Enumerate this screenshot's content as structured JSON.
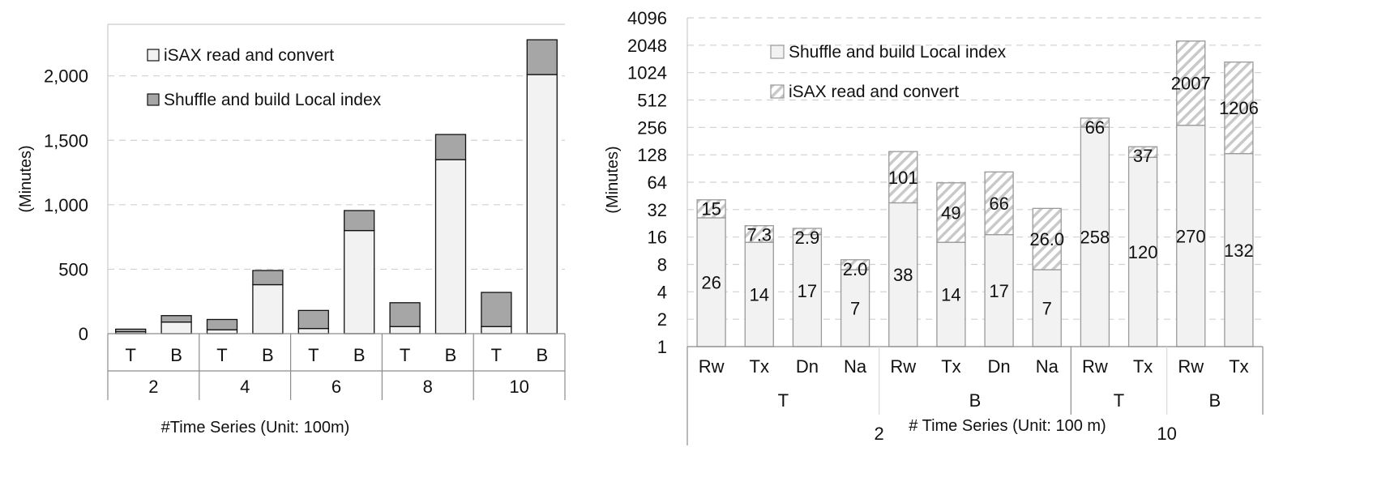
{
  "chart_data": [
    {
      "type": "bar",
      "stacked": true,
      "ylabel": "(Minutes)",
      "xlabel": "#Time Series (Unit: 100m)",
      "ylim": [
        0,
        2400
      ],
      "yticks": [
        0,
        500,
        1000,
        1500,
        2000
      ],
      "ytick_labels": [
        "0",
        "500",
        "1,000",
        "1,500",
        "2,000"
      ],
      "grid": true,
      "legend_position": "top-left",
      "groups": [
        "2",
        "4",
        "6",
        "8",
        "10"
      ],
      "categories": [
        "T",
        "B",
        "T",
        "B",
        "T",
        "B",
        "T",
        "B",
        "T",
        "B"
      ],
      "series": [
        {
          "name": "iSAX read and convert",
          "color": "#f2f2f2",
          "values": [
            15,
            90,
            30,
            380,
            40,
            800,
            55,
            1350,
            55,
            2010
          ]
        },
        {
          "name": "Shuffle and build Local index",
          "color": "#a6a6a6",
          "values": [
            20,
            50,
            80,
            110,
            140,
            155,
            185,
            195,
            265,
            270
          ]
        }
      ]
    },
    {
      "type": "bar",
      "stacked": true,
      "log_scale": true,
      "log_base": 2,
      "ylabel": "(Minutes)",
      "xlabel": "# Time Series (Unit: 100 m)",
      "ylim": [
        1,
        4096
      ],
      "yticks": [
        1,
        2,
        4,
        8,
        16,
        32,
        64,
        128,
        256,
        512,
        1024,
        2048,
        4096
      ],
      "ytick_labels": [
        "1",
        "2",
        "4",
        "8",
        "16",
        "32",
        "64",
        "128",
        "256",
        "512",
        "1024",
        "2048",
        "4096"
      ],
      "grid": true,
      "legend_position": "top-left",
      "categories": [
        "Rw",
        "Tx",
        "Dn",
        "Na",
        "Rw",
        "Tx",
        "Dn",
        "Na",
        "Rw",
        "Tx",
        "Rw",
        "Tx"
      ],
      "subgroups": [
        {
          "label": "T",
          "start": 0,
          "count": 4
        },
        {
          "label": "B",
          "start": 4,
          "count": 4
        },
        {
          "label": "T",
          "start": 8,
          "count": 2
        },
        {
          "label": "B",
          "start": 10,
          "count": 2
        }
      ],
      "groups": [
        {
          "label": "2",
          "start": 0,
          "count": 8
        },
        {
          "label": "10",
          "start": 8,
          "count": 4
        }
      ],
      "series": [
        {
          "name": "Shuffle and build Local index",
          "fill": "solid",
          "color": "#f2f2f2",
          "values": [
            26,
            14,
            17,
            7,
            38,
            14,
            17,
            7,
            258,
            120,
            270,
            132
          ],
          "labels": [
            "26",
            "14",
            "17",
            "7",
            "38",
            "14",
            "17",
            "7",
            "258",
            "120",
            "270",
            "132"
          ]
        },
        {
          "name": "iSAX read and convert",
          "fill": "hatched",
          "color": "#d9d9d9",
          "values": [
            15,
            7.3,
            2.9,
            2.0,
            101,
            49,
            66,
            26.0,
            66,
            37,
            2007,
            1206
          ],
          "labels": [
            "15",
            "7.3",
            "2.9",
            "2.0",
            "101",
            "49",
            "66",
            "26.0",
            "66",
            "37",
            "2007",
            "1206"
          ]
        }
      ]
    }
  ]
}
